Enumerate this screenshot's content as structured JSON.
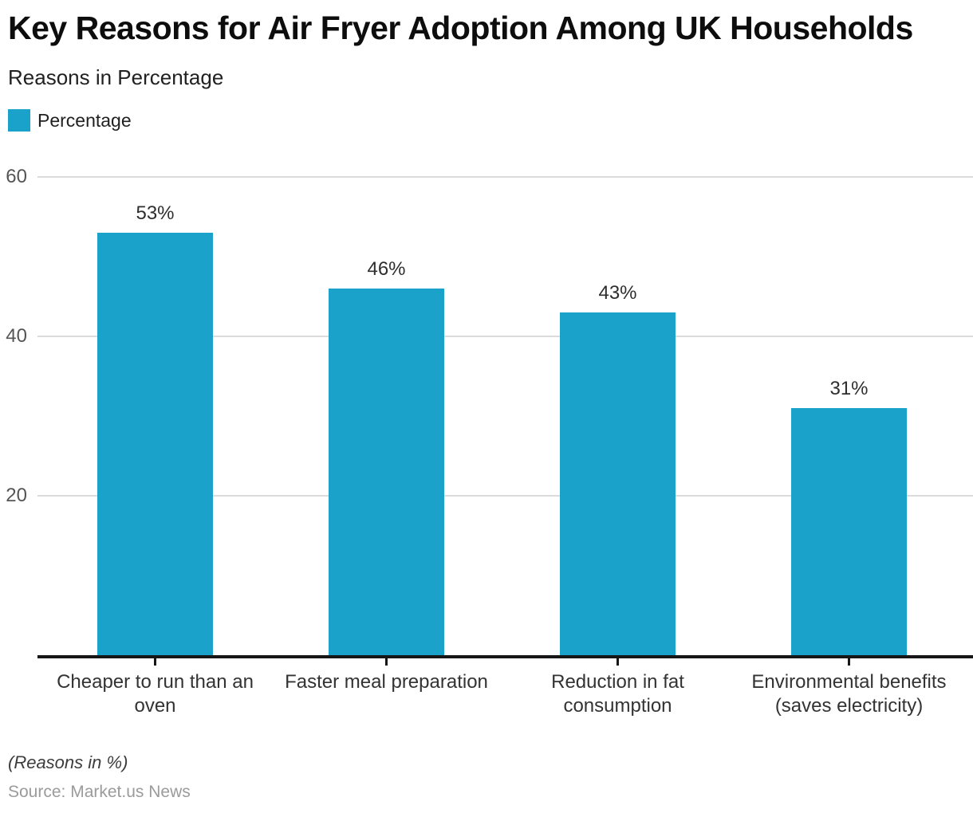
{
  "header": {
    "title": "Key Reasons for Air Fryer Adoption Among UK Households",
    "subtitle": "Reasons in Percentage"
  },
  "legend": {
    "items": [
      {
        "label": "Percentage",
        "color": "#1aa2cb"
      }
    ]
  },
  "chart_data": {
    "type": "bar",
    "title": "Key Reasons for Air Fryer Adoption Among UK Households",
    "subtitle": "Reasons in Percentage",
    "series_name": "Percentage",
    "categories": [
      "Cheaper to run than an oven",
      "Faster meal preparation",
      "Reduction in fat consumption",
      "Environmental benefits (saves electricity)"
    ],
    "values": [
      53,
      46,
      43,
      31
    ],
    "value_labels": [
      "53%",
      "46%",
      "43%",
      "31%"
    ],
    "xlabel": "",
    "ylabel": "",
    "ylim": [
      0,
      62
    ],
    "yticks": [
      20,
      40,
      60
    ],
    "grid": true,
    "legend_position": "top-left",
    "bar_color": "#1aa2cb",
    "gridline_color": "#dcdcdc",
    "axis_color": "#161616"
  },
  "footer": {
    "note": "(Reasons in %)",
    "source": "Source: Market.us News"
  }
}
